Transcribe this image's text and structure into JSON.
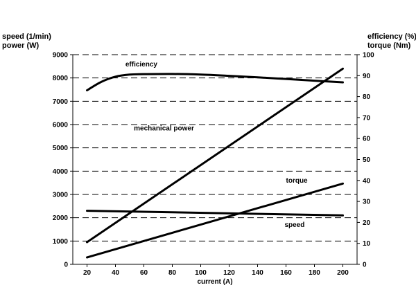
{
  "chart_data": {
    "type": "line",
    "xlabel": "current (A)",
    "y_left_label": [
      "speed (1/min)",
      "power (W)"
    ],
    "y_right_label": [
      "efficiency (%)",
      "torque (Nm)"
    ],
    "x_ticks": [
      20,
      40,
      60,
      80,
      100,
      120,
      140,
      160,
      180,
      200
    ],
    "y_left_ticks": [
      0,
      1000,
      2000,
      3000,
      4000,
      5000,
      6000,
      7000,
      8000,
      9000
    ],
    "y_right_ticks": [
      0,
      10,
      20,
      30,
      40,
      50,
      60,
      70,
      80,
      90,
      100
    ],
    "xlim": [
      10,
      210
    ],
    "ylim_left": [
      0,
      9000
    ],
    "ylim_right": [
      0,
      100
    ],
    "grid": true,
    "series": [
      {
        "name": "efficiency",
        "axis": "right",
        "x": [
          20,
          30,
          40,
          50,
          60,
          80,
          100,
          120,
          140,
          160,
          180,
          200
        ],
        "values": [
          83,
          87,
          89.5,
          90.5,
          90.7,
          90.8,
          90.5,
          89.9,
          89.2,
          88.4,
          87.6,
          86.8
        ]
      },
      {
        "name": "mechanical power",
        "axis": "left",
        "x": [
          20,
          200
        ],
        "values": [
          950,
          8400
        ]
      },
      {
        "name": "torque",
        "axis": "right",
        "x": [
          20,
          200
        ],
        "values": [
          3.3,
          38.5
        ]
      },
      {
        "name": "speed",
        "axis": "left",
        "x": [
          20,
          200
        ],
        "values": [
          2300,
          2100
        ]
      }
    ],
    "labels": [
      {
        "text": "efficiency",
        "series": "efficiency",
        "x": 47,
        "y": 8500,
        "axis": "left"
      },
      {
        "text": "mechanical power",
        "series": "mechanical power",
        "x": 53,
        "y": 5750,
        "axis": "left"
      },
      {
        "text": "torque",
        "series": "torque",
        "x": 160,
        "y": 3500,
        "axis": "left"
      },
      {
        "text": "speed",
        "series": "speed",
        "x": 159,
        "y": 1600,
        "axis": "left"
      }
    ]
  }
}
